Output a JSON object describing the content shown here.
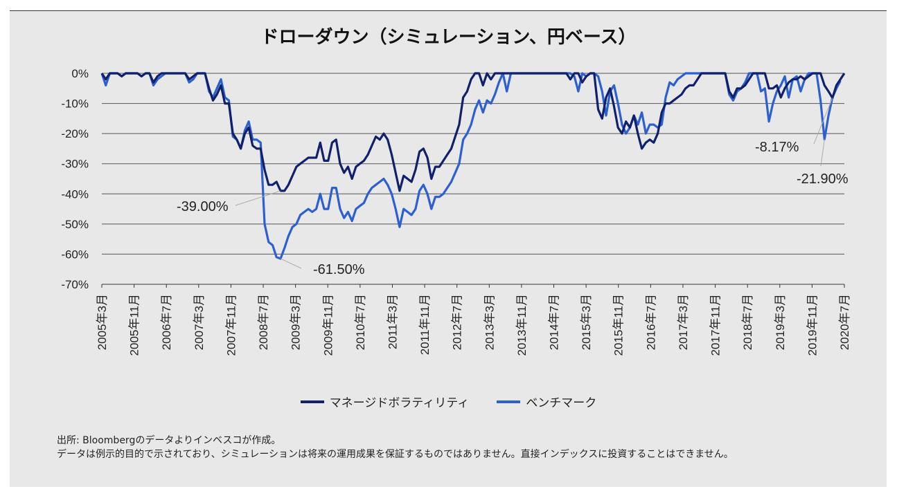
{
  "title": "ドローダウン（シミュレーション、円ベース）",
  "legend": {
    "series1": "マネージドボラティリティ",
    "series2": "ベンチマーク"
  },
  "colors": {
    "series1": "#10206a",
    "series2": "#2c5fd0"
  },
  "footnote": {
    "line1": "出所: Bloombergのデータよりインベスコが作成。",
    "line2": "データは例示的目的で示されており、シミュレーションは将来の運用成果を保証するものではありません。直接インデックスに投資することはできません。"
  },
  "chart_data": {
    "type": "line",
    "title": "ドローダウン（シミュレーション、円ベース）",
    "ylim": [
      -70,
      0
    ],
    "yticks": [
      "0%",
      "-10%",
      "-20%",
      "-30%",
      "-40%",
      "-50%",
      "-60%",
      "-70%"
    ],
    "x_start": "2005年3月",
    "x_end": "2020年7月",
    "xticks": [
      "2005年3月",
      "2005年11月",
      "2006年7月",
      "2007年3月",
      "2007年11月",
      "2008年7月",
      "2009年3月",
      "2009年11月",
      "2010年7月",
      "2011年3月",
      "2011年11月",
      "2012年7月",
      "2013年3月",
      "2013年11月",
      "2014年7月",
      "2015年3月",
      "2015年11月",
      "2016年7月",
      "2017年3月",
      "2017年11月",
      "2018年7月",
      "2019年3月",
      "2019年11月",
      "2020年7月"
    ],
    "grid": true,
    "legend_position": "bottom",
    "annotations": [
      {
        "text": "-39.00%",
        "series": "マネージドボラティリティ",
        "x": "2009年2月",
        "y": -39.0
      },
      {
        "text": "-61.50%",
        "series": "ベンチマーク",
        "x": "2009年2月",
        "y": -61.5
      },
      {
        "text": "-8.17%",
        "series": "マネージドボラティリティ",
        "x": "2020年3月",
        "y": -8.17
      },
      {
        "text": "-21.90%",
        "series": "ベンチマーク",
        "x": "2020年3月",
        "y": -21.9
      }
    ],
    "series": [
      {
        "name": "マネージドボラティリティ",
        "values": [
          0,
          -2,
          0,
          0,
          0,
          -1,
          0,
          0,
          0,
          0,
          -1,
          0,
          0,
          -3,
          -1,
          0,
          0,
          0,
          0,
          0,
          0,
          0,
          -2,
          -1,
          0,
          0,
          0,
          -5,
          -9,
          -7,
          -4,
          -10,
          -10,
          -20,
          -22,
          -25,
          -20,
          -18,
          -24,
          -25,
          -25,
          -32,
          -37,
          -37,
          -36,
          -39,
          -39,
          -37,
          -34,
          -31,
          -30,
          -29,
          -28,
          -28,
          -28,
          -23,
          -29,
          -29,
          -23,
          -22,
          -30,
          -33,
          -31,
          -35,
          -31,
          -30,
          -29,
          -27,
          -24,
          -21,
          -22,
          -20,
          -22,
          -27,
          -33,
          -39,
          -34,
          -35,
          -36,
          -32,
          -26,
          -25,
          -28,
          -35,
          -31,
          -31,
          -29,
          -27,
          -25,
          -21,
          -17,
          -8,
          -6,
          -2,
          0,
          0,
          -4,
          0,
          -2,
          0,
          0,
          0,
          0,
          0,
          0,
          0,
          0,
          0,
          0,
          0,
          0,
          0,
          0,
          0,
          0,
          0,
          0,
          0,
          -2,
          0,
          0,
          -3,
          -1,
          0,
          0,
          -12,
          -15,
          -8,
          -5,
          -11,
          -18,
          -20,
          -16,
          -18,
          -14,
          -20,
          -25,
          -23,
          -22,
          -23,
          -20,
          -13,
          -10,
          -10,
          -9,
          -8,
          -7,
          -5,
          -4,
          -4,
          -2,
          0,
          0,
          0,
          0,
          0,
          0,
          0,
          -6,
          -8,
          -5,
          -5,
          -4,
          -2,
          0,
          0,
          0,
          0,
          -5,
          -5,
          -4,
          -8,
          -5,
          -3,
          -2,
          -2,
          -1,
          -2,
          -1,
          0,
          0,
          0,
          -4,
          -6,
          -8.17,
          -4,
          -2,
          0
        ]
      },
      {
        "name": "ベンチマーク",
        "values": [
          0,
          -4,
          0,
          0,
          0,
          -1,
          0,
          0,
          0,
          0,
          -1,
          0,
          0,
          -4,
          -2,
          -1,
          0,
          0,
          0,
          0,
          0,
          0,
          -3,
          -2,
          0,
          0,
          0,
          -6,
          -8,
          -5,
          -2,
          -8,
          -9,
          -21,
          -22,
          -25,
          -19,
          -16,
          -22,
          -22,
          -23,
          -50,
          -56,
          -57,
          -61,
          -61.5,
          -58,
          -54,
          -51,
          -50,
          -47,
          -46,
          -45,
          -46,
          -45,
          -40,
          -45,
          -45,
          -38,
          -38,
          -45,
          -48,
          -46,
          -49,
          -45,
          -44,
          -43,
          -40,
          -38,
          -37,
          -36,
          -35,
          -37,
          -40,
          -45,
          -51,
          -45,
          -46,
          -47,
          -45,
          -39,
          -37,
          -40,
          -45,
          -41,
          -41,
          -40,
          -38,
          -36,
          -33,
          -30,
          -22,
          -20,
          -17,
          -12,
          -9,
          -13,
          -9,
          -10,
          -7,
          -3,
          0,
          -6,
          0,
          0,
          0,
          0,
          0,
          0,
          0,
          0,
          0,
          0,
          0,
          0,
          0,
          0,
          0,
          0,
          -1,
          -6,
          0,
          -1,
          0,
          0,
          -1,
          -6,
          -14,
          -6,
          -4,
          -10,
          -17,
          -20,
          -18,
          -14,
          -17,
          -13,
          -20,
          -17,
          -17,
          -18,
          -17,
          -8,
          -3,
          -4,
          -2,
          -1,
          0,
          0,
          0,
          0,
          0,
          0,
          0,
          0,
          0,
          0,
          0,
          -7,
          -9,
          -6,
          -5,
          -3,
          0,
          0,
          0,
          -6,
          -5,
          -16,
          -10,
          -6,
          -4,
          -1,
          -8,
          -2,
          -1,
          -6,
          -2,
          0,
          0,
          0,
          -9,
          -21.9,
          -14,
          -8,
          -5,
          -2.5
        ]
      }
    ]
  }
}
